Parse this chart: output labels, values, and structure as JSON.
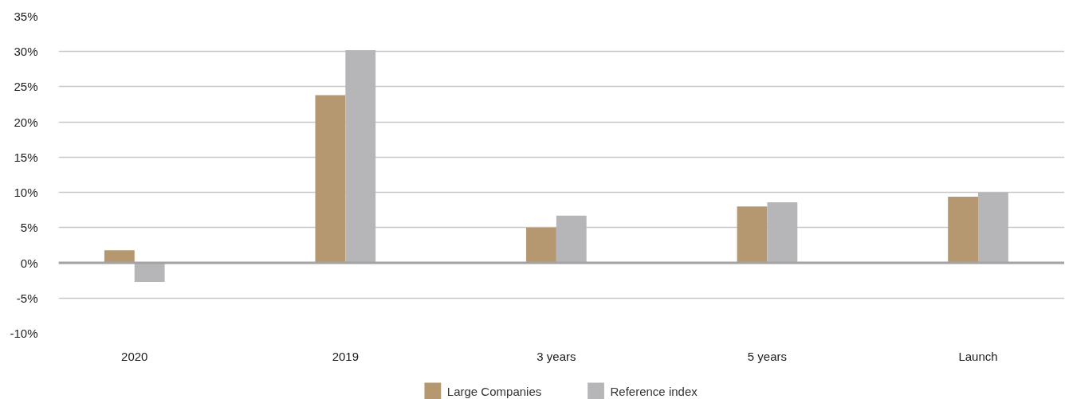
{
  "chart_data": {
    "type": "bar",
    "categories": [
      "2020",
      "2019",
      "3 years",
      "5 years",
      "Launch"
    ],
    "series": [
      {
        "name": "Large Companies",
        "color": "#b5986f",
        "values": [
          1.8,
          23.8,
          5.0,
          8.0,
          9.4
        ]
      },
      {
        "name": "Reference index",
        "color": "#b6b6b8",
        "values": [
          -2.7,
          30.2,
          6.7,
          8.6,
          10.0
        ]
      }
    ],
    "ylim": [
      -10,
      35
    ],
    "yticks": [
      {
        "value": -10,
        "label": "-10%"
      },
      {
        "value": -5,
        "label": "-5%"
      },
      {
        "value": 0,
        "label": "0%"
      },
      {
        "value": 5,
        "label": "5%"
      },
      {
        "value": 10,
        "label": "10%"
      },
      {
        "value": 15,
        "label": "15%"
      },
      {
        "value": 20,
        "label": "20%"
      },
      {
        "value": 25,
        "label": "25%"
      },
      {
        "value": 30,
        "label": "30%"
      },
      {
        "value": 35,
        "label": "35%"
      }
    ],
    "ref_lines": [
      {
        "axis": "y",
        "value": 0,
        "color": "#a3a3a3"
      }
    ],
    "grid": "y",
    "legend": "bottom"
  }
}
